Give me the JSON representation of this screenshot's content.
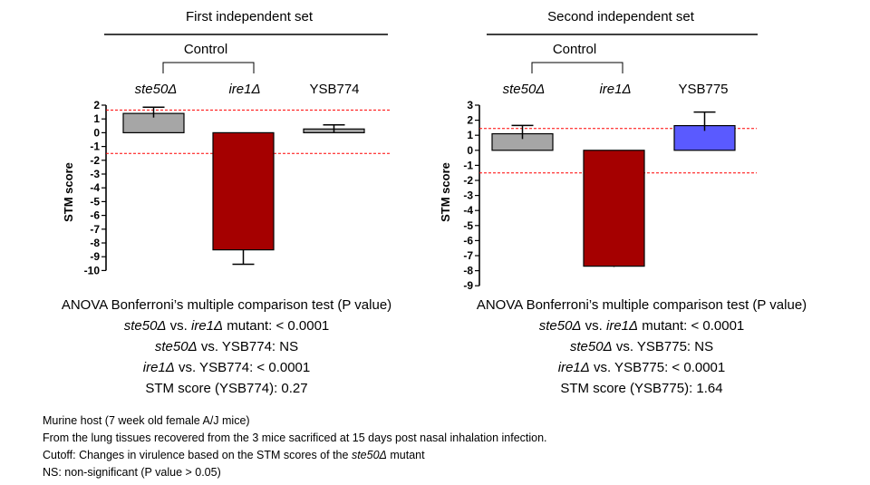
{
  "chart_data": [
    {
      "type": "bar",
      "title": "First independent set",
      "ylabel": "STM score",
      "ylim": [
        -10,
        2
      ],
      "yticks": [
        2,
        1,
        0,
        -1,
        -2,
        -3,
        -4,
        -5,
        -6,
        -7,
        -8,
        -9,
        -10
      ],
      "group_label": "Control",
      "categories": [
        "ste50Δ",
        "ire1Δ",
        "YSB774"
      ],
      "italic_categories": [
        true,
        true,
        false
      ],
      "values": [
        1.4,
        -8.5,
        0.27
      ],
      "error_plus": [
        0.45,
        0,
        0.3
      ],
      "error_minus": [
        0.3,
        1.05,
        0.3
      ],
      "colors": [
        "#a6a6a6",
        "#a50000",
        "#a6a6a6"
      ],
      "cutoff_lines": [
        1.65,
        -1.5
      ],
      "cutoff_color": "#ff0000"
    },
    {
      "type": "bar",
      "title": "Second independent set",
      "ylabel": "STM score",
      "ylim": [
        -8,
        3
      ],
      "yticks": [
        3,
        2,
        1,
        0,
        -1,
        -2,
        -3,
        -4,
        -5,
        -6,
        -7,
        -8,
        -9
      ],
      "group_label": "Control",
      "categories": [
        "ste50Δ",
        "ire1Δ",
        "YSB775"
      ],
      "italic_categories": [
        true,
        true,
        false
      ],
      "values": [
        1.1,
        -7.7,
        1.64
      ],
      "error_plus": [
        0.55,
        0,
        0.9
      ],
      "error_minus": [
        0.35,
        0.05,
        0.35
      ],
      "colors": [
        "#a6a6a6",
        "#a50000",
        "#5a5aff"
      ],
      "cutoff_lines": [
        1.45,
        -1.5
      ],
      "cutoff_color": "#ff0000"
    }
  ],
  "stats": [
    {
      "heading": "ANOVA Bonferroni’s multiple comparison test (P value)",
      "l1_a": "ste50Δ",
      "l1_b": " vs. ",
      "l1_c": "ire1Δ",
      "l1_d": " mutant: < 0.0001",
      "l2_a": "ste50Δ",
      "l2_b": " vs. YSB774: NS",
      "l3_a": "ire1Δ",
      "l3_b": " vs. YSB774: < 0.0001",
      "l4": "STM score (YSB774): 0.27"
    },
    {
      "heading": "ANOVA Bonferroni’s multiple comparison test (P value)",
      "l1_a": "ste50Δ",
      "l1_b": " vs. ",
      "l1_c": "ire1Δ",
      "l1_d": " mutant: < 0.0001",
      "l2_a": "ste50Δ",
      "l2_b": " vs. YSB775:  NS",
      "l3_a": "ire1Δ",
      "l3_b": " vs. YSB775: < 0.0001",
      "l4": "STM score (YSB775): 1.64"
    }
  ],
  "footnotes": {
    "host": "Murine host (7 week old female A/J mice)",
    "tissues": "From  the lung tissues recovered from  the 3 mice sacrificed at 15 days post nasal inhalation infection.",
    "cutoff_pre": "Cutoff: Changes in virulence based on the STM scores of the ",
    "cutoff_strain": "ste50Δ",
    "cutoff_post": " mutant",
    "ns": "NS: non-significant (P value > 0.05)"
  }
}
